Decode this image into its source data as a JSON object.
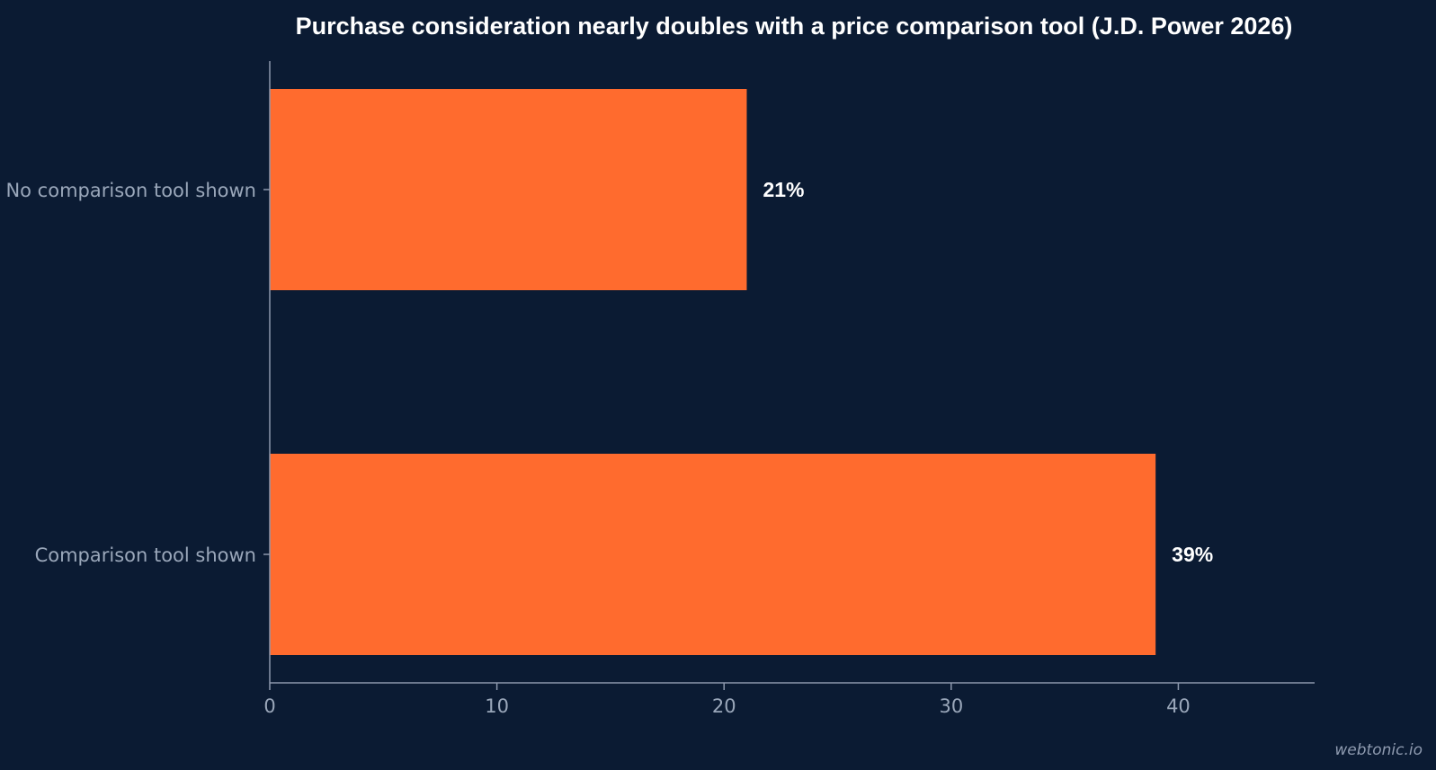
{
  "chart_data": {
    "type": "bar",
    "orientation": "horizontal",
    "title": "Purchase consideration nearly doubles with a price comparison tool (J.D. Power 2026)",
    "categories": [
      "No comparison tool shown",
      "Comparison tool shown"
    ],
    "values": [
      21,
      39
    ],
    "value_labels": [
      "21%",
      "39%"
    ],
    "xlabel": "",
    "ylabel": "",
    "xlim": [
      0,
      46
    ],
    "xticks": [
      0,
      10,
      20,
      30,
      40
    ],
    "xtick_labels": [
      "0",
      "10",
      "20",
      "30",
      "40"
    ],
    "grid": false,
    "legend": "none"
  },
  "colors": {
    "background": "#0b1b33",
    "bar": "#ff6b2e",
    "axis": "#8c98ad",
    "text": "#ffffff",
    "muted_text": "#9aa7ba"
  },
  "watermark": "webtonic.io"
}
